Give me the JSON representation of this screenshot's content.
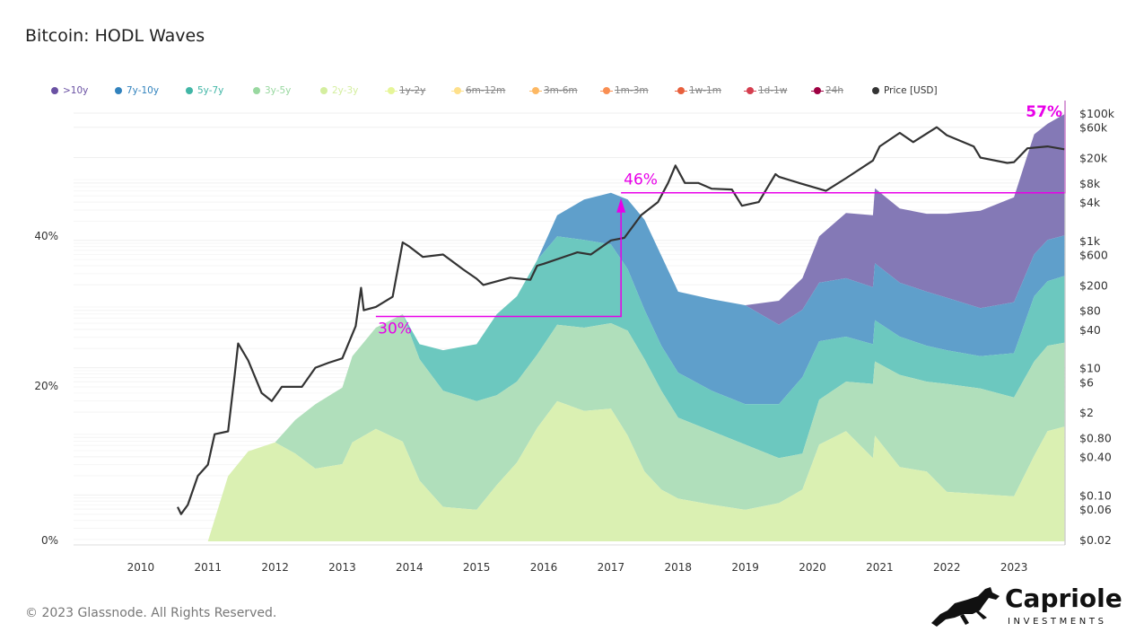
{
  "title": "Bitcoin: HODL Waves",
  "footer": "© 2023 Glassnode. All Rights Reserved.",
  "logo": {
    "name": "Capriole",
    "sub": "INVESTMENTS",
    "icon": "horse-icon"
  },
  "legend": [
    {
      "label": ">10y",
      "color": "#6a51a3",
      "enabled": true
    },
    {
      "label": "7y-10y",
      "color": "#3182bd",
      "enabled": true
    },
    {
      "label": "5y-7y",
      "color": "#41b6a6",
      "enabled": true
    },
    {
      "label": "3y-5y",
      "color": "#99d8a0",
      "enabled": true
    },
    {
      "label": "2y-3y",
      "color": "#d4ee9f",
      "enabled": true
    },
    {
      "label": "1y-2y",
      "color": "#e6f598",
      "enabled": false
    },
    {
      "label": "6m-12m",
      "color": "#fee08b",
      "enabled": false
    },
    {
      "label": "3m-6m",
      "color": "#fdb863",
      "enabled": false
    },
    {
      "label": "1m-3m",
      "color": "#f98e52",
      "enabled": false
    },
    {
      "label": "1w-1m",
      "color": "#e8603c",
      "enabled": false
    },
    {
      "label": "1d-1w",
      "color": "#d53e4f",
      "enabled": false
    },
    {
      "label": "24h",
      "color": "#9e0142",
      "enabled": false
    },
    {
      "label": "Price [USD]",
      "color": "#333333",
      "enabled": true
    }
  ],
  "annotations": [
    {
      "label": "30%",
      "value": 30,
      "color": "#e800e8"
    },
    {
      "label": "46%",
      "value": 46.5,
      "color": "#e800e8"
    },
    {
      "label": "57%",
      "value": 57,
      "color": "#e800e8"
    }
  ],
  "chart_data": {
    "type": "area",
    "stacked": true,
    "title": "Bitcoin: HODL Waves",
    "x_ticks": [
      "2010",
      "2011",
      "2012",
      "2013",
      "2014",
      "2015",
      "2016",
      "2017",
      "2018",
      "2019",
      "2020",
      "2021",
      "2022",
      "2023"
    ],
    "y_left_ticks": [
      "0%",
      "20%",
      "40%"
    ],
    "y_left_range": [
      0,
      60
    ],
    "y_right_scale": "log",
    "y_right_ticks": [
      "$100k",
      "$60k",
      "$20k",
      "$8k",
      "$4k",
      "$1k",
      "$600",
      "$200",
      "$80",
      "$40",
      "$10",
      "$6",
      "$2",
      "$0.80",
      "$0.40",
      "$0.10",
      "$0.06",
      "$0.02"
    ],
    "y_right_tick_values": [
      100000,
      60000,
      20000,
      8000,
      4000,
      1000,
      600,
      200,
      80,
      40,
      10,
      6,
      2,
      0.8,
      0.4,
      0.1,
      0.06,
      0.02
    ],
    "x_range": [
      2009.0,
      2023.76
    ],
    "grid": true,
    "legend_position": "top",
    "x": [
      2011.0,
      2011.3,
      2011.6,
      2012.0,
      2012.3,
      2012.6,
      2013.0,
      2013.15,
      2013.5,
      2013.9,
      2014.15,
      2014.5,
      2015.0,
      2015.3,
      2015.6,
      2015.9,
      2016.2,
      2016.6,
      2017.0,
      2017.25,
      2017.5,
      2017.75,
      2018.0,
      2018.5,
      2019.0,
      2019.5,
      2019.85,
      2020.1,
      2020.5,
      2020.9,
      2020.93,
      2021.3,
      2021.7,
      2022.0,
      2022.5,
      2023.0,
      2023.3,
      2023.5,
      2023.75
    ],
    "series": [
      {
        "name": "2y-3y",
        "color": "#daf0b2",
        "values": [
          0,
          8.7,
          12.0,
          13.2,
          11.7,
          9.7,
          10.3,
          13.2,
          15.0,
          13.3,
          8.1,
          4.6,
          4.2,
          7.5,
          10.5,
          15.1,
          18.7,
          17.4,
          17.7,
          14.1,
          9.3,
          6.9,
          5.7,
          4.9,
          4.2,
          5.1,
          6.9,
          12.9,
          14.7,
          11.1,
          14.1,
          9.9,
          9.3,
          6.6,
          6.3,
          6.0,
          11.4,
          14.7,
          15.3
        ]
      },
      {
        "name": "3y-5y",
        "color": "#b0dfbb",
        "values": [
          0,
          0,
          0,
          0,
          4.5,
          8.6,
          10.2,
          11.5,
          13.5,
          17.0,
          16.2,
          15.5,
          14.5,
          12.0,
          10.8,
          9.8,
          10.2,
          11.1,
          11.4,
          14.0,
          15.0,
          13.2,
          10.8,
          9.8,
          8.7,
          6.0,
          4.8,
          6.0,
          6.6,
          9.9,
          9.9,
          12.3,
          12.0,
          14.4,
          14.1,
          13.2,
          12.6,
          11.4,
          11.2
        ]
      },
      {
        "name": "5y-7y",
        "color": "#6cc8bf",
        "values": [
          0,
          0,
          0,
          0,
          0,
          0,
          0,
          0,
          0,
          0,
          2.0,
          5.4,
          7.6,
          10.8,
          11.4,
          12.6,
          11.8,
          11.7,
          10.5,
          8.2,
          6.6,
          6.0,
          6.0,
          5.4,
          5.4,
          7.2,
          10.2,
          7.8,
          6.0,
          5.3,
          5.5,
          5.1,
          4.8,
          4.5,
          4.3,
          5.9,
          8.7,
          8.6,
          8.9
        ]
      },
      {
        "name": "7y-10y",
        "color": "#5f9fcb",
        "values": [
          0,
          0,
          0,
          0,
          0,
          0,
          0,
          0,
          0,
          0,
          0,
          0,
          0,
          0,
          0,
          0,
          2.8,
          5.4,
          6.9,
          9.3,
          12.0,
          12.0,
          10.8,
          12.2,
          13.2,
          10.6,
          9.0,
          7.8,
          7.8,
          7.6,
          7.6,
          7.2,
          7.2,
          7.0,
          6.4,
          6.8,
          5.6,
          5.5,
          5.4
        ]
      },
      {
        "name": ">10y",
        "color": "#8479b6",
        "values": [
          0,
          0,
          0,
          0,
          0,
          0,
          0,
          0,
          0,
          0,
          0,
          0,
          0,
          0,
          0,
          0,
          0,
          0,
          0,
          0,
          0,
          0,
          0,
          0,
          0,
          3.2,
          4.2,
          6.2,
          8.7,
          9.6,
          10.0,
          9.9,
          10.4,
          11.2,
          13.0,
          14.0,
          16.0,
          15.5,
          16.2
        ]
      }
    ],
    "price": {
      "name": "Price [USD]",
      "color": "#333333",
      "x": [
        2010.55,
        2010.6,
        2010.7,
        2010.85,
        2011.0,
        2011.1,
        2011.3,
        2011.4,
        2011.45,
        2011.6,
        2011.8,
        2011.95,
        2012.1,
        2012.4,
        2012.6,
        2012.8,
        2013.0,
        2013.2,
        2013.28,
        2013.32,
        2013.5,
        2013.75,
        2013.9,
        2014.0,
        2014.2,
        2014.5,
        2014.8,
        2015.0,
        2015.1,
        2015.5,
        2015.8,
        2015.9,
        2016.0,
        2016.5,
        2016.7,
        2017.0,
        2017.2,
        2017.45,
        2017.7,
        2017.85,
        2017.96,
        2018.1,
        2018.3,
        2018.5,
        2018.8,
        2018.95,
        2019.2,
        2019.45,
        2019.5,
        2019.8,
        2020.2,
        2020.5,
        2020.9,
        2021.0,
        2021.3,
        2021.5,
        2021.85,
        2022.0,
        2022.4,
        2022.5,
        2022.9,
        2023.0,
        2023.2,
        2023.5,
        2023.75
      ],
      "values": [
        0.065,
        0.05,
        0.07,
        0.2,
        0.3,
        0.9,
        1.0,
        8,
        24,
        13,
        4,
        3,
        5,
        5,
        10,
        12,
        14,
        45,
        180,
        80,
        90,
        130,
        930,
        800,
        550,
        600,
        350,
        250,
        200,
        260,
        240,
        400,
        430,
        650,
        600,
        1000,
        1100,
        2500,
        4000,
        8000,
        15000,
        8000,
        8000,
        6500,
        6300,
        3500,
        4000,
        11000,
        10000,
        8000,
        6000,
        9500,
        18000,
        30000,
        49000,
        35000,
        60000,
        45000,
        30000,
        20000,
        16500,
        17000,
        28000,
        30000,
        27000
      ]
    }
  }
}
